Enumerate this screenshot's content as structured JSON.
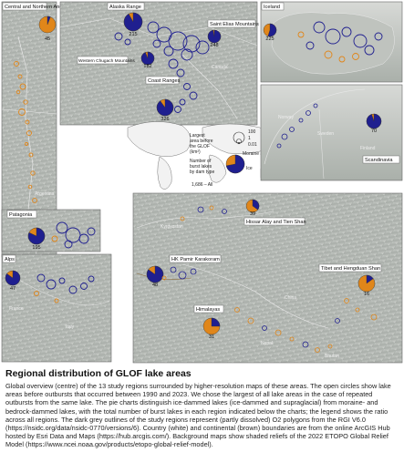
{
  "map": {
    "legend": {
      "area_title": "Largest area before the GLOF (km²)",
      "area_values": [
        "100",
        "1",
        "0.01"
      ],
      "count_title": "Number of burst lakes by dam type",
      "dam_types": [
        "Moraine and bedrock",
        "Ice"
      ],
      "all_value": "1,686 – All"
    },
    "colors": {
      "ice": "#1f1f8f",
      "moraine": "#e0861a",
      "boundary": "#ffffff",
      "continent": "#8a6a3a"
    },
    "panels": [
      {
        "name": "Central and Northern Andes",
        "count": "45",
        "ice_fraction": 0.06
      },
      {
        "name": "Alaska Range",
        "count": "215",
        "ice_fraction": 0.92
      },
      {
        "name": "Saint Elias Mountains",
        "count": "248",
        "ice_fraction": 0.97
      },
      {
        "name": "Western Chugach Mountains",
        "count": "182",
        "ice_fraction": 0.94
      },
      {
        "name": "Coast Ranges",
        "count": "326",
        "ice_fraction": 0.9
      },
      {
        "name": "Iceland",
        "count": "225",
        "ice_fraction": 0.55
      },
      {
        "name": "Scandinavia",
        "count": "70",
        "ice_fraction": 0.95
      },
      {
        "name": "Patagonia",
        "count": "195",
        "ice_fraction": 0.82
      },
      {
        "name": "Alps",
        "count": "47",
        "ice_fraction": 0.85
      },
      {
        "name": "Hissar Alay and Tien Shan",
        "count": "39",
        "ice_fraction": 0.35
      },
      {
        "name": "HK Pamir Karakoram",
        "count": "48",
        "ice_fraction": 0.85
      },
      {
        "name": "Tibet and Hengduan Shan",
        "count": "16",
        "ice_fraction": 0.15
      },
      {
        "name": "Himalayas",
        "count": "31",
        "ice_fraction": 0.25
      }
    ],
    "place_labels": [
      "Canada",
      "Greenland",
      "Norway",
      "Sweden",
      "Finland",
      "Argentina",
      "Chile",
      "Kyrgyzstan",
      "China",
      "Nepal",
      "Bhutan",
      "France",
      "Italy"
    ]
  },
  "caption": {
    "title": "Regional distribution of GLOF lake areas",
    "body": "Global overview (centre) of the 13 study regions surrounded by higher-resolution maps of these areas. The open circles show lake areas before outbursts that occurred between 1990 and 2023. We chose the largest of all lake areas in the case of repeated outbursts from the same lake. The pie charts distinguish ice-dammed lakes (ice-dammed and supraglacial) from moraine- and bedrock-dammed lakes, with the total number of burst lakes in each region indicated below the charts; the legend shows the ratio across all regions. The dark grey outlines of the study regions represent (partly dissolved) O2 polygons from the RGI V6.0 (https://nsidc.org/data/nsidc-0770/versions/6). Country (white) and continental (brown) boundaries are from the online ArcGIS Hub hosted by Esri Data and Maps (https://hub.arcgis.com/). Background maps show shaded reliefs of the 2022 ETOPO Global Relief Model (https://www.ncei.noaa.gov/products/etopo-global-relief-model)."
  }
}
